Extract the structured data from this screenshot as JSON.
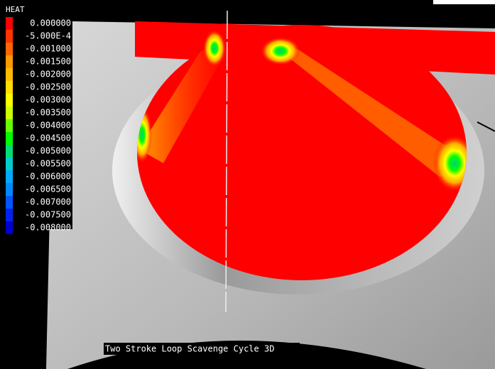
{
  "legend": {
    "title": "HEAT",
    "labels": [
      "0.000000",
      "-5.000E-4",
      "-0.001000",
      "-0.001500",
      "-0.002000",
      "-0.002500",
      "-0.003000",
      "-0.003500",
      "-0.004000",
      "-0.004500",
      "-0.005000",
      "-0.005500",
      "-0.006000",
      "-0.006500",
      "-0.007000",
      "-0.007500",
      "-0.008000"
    ],
    "colors": [
      "#ff0000",
      "#ff3300",
      "#ff6600",
      "#ff9900",
      "#ffbb00",
      "#ffdd00",
      "#ffff00",
      "#ccff00",
      "#66ff00",
      "#00ff00",
      "#00dd77",
      "#00cccc",
      "#00aaff",
      "#0088ff",
      "#0055ff",
      "#0022ee",
      "#0000cc"
    ]
  },
  "caption": "Two Stroke Loop Scavenge Cycle 3D"
}
